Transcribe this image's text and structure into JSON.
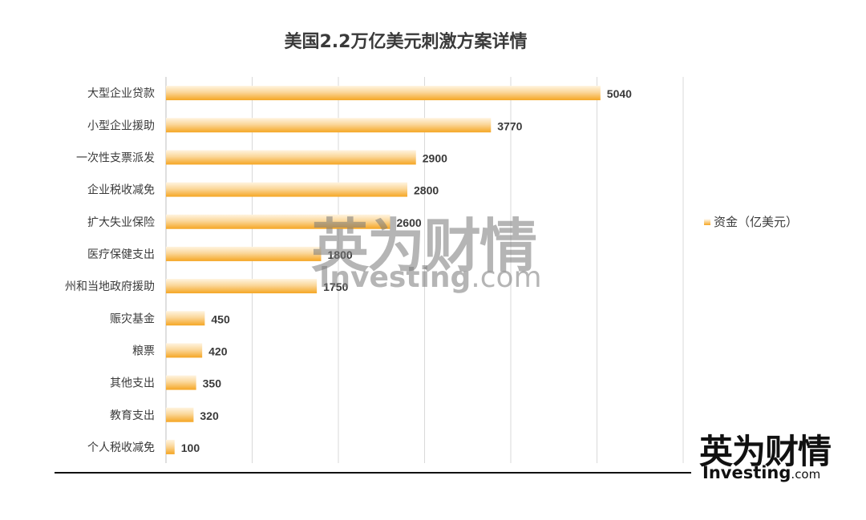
{
  "watermark": {
    "cn": "英为财情",
    "en_main": "Investing",
    "en_suffix": ".com"
  },
  "logo": {
    "cn": "英为财情",
    "en_main": "Investing",
    "en_suffix": ".com"
  },
  "chart_data": {
    "type": "bar",
    "orientation": "horizontal",
    "title": "美国2.2万亿美元刺激方案详情",
    "categories": [
      "大型企业贷款",
      "小型企业援助",
      "一次性支票派发",
      "企业税收减免",
      "扩大失业保险",
      "医疗保健支出",
      "州和当地政府援助",
      "赈灾基金",
      "粮票",
      "其他支出",
      "教育支出",
      "个人税收减免"
    ],
    "series": [
      {
        "name": "资金（亿美元）",
        "values": [
          5040,
          3770,
          2900,
          2800,
          2600,
          1800,
          1750,
          450,
          420,
          350,
          320,
          100
        ]
      }
    ],
    "xlim": [
      0,
      6000
    ],
    "grid": true,
    "legend": "right",
    "colors": {
      "bar_light": "#fff4e0",
      "bar_mid": "#fbd79a",
      "bar_dark": "#f5a623",
      "gridline": "#d9d9d9",
      "axis": "#bfbfbf",
      "label": "#3a3a3a"
    }
  }
}
